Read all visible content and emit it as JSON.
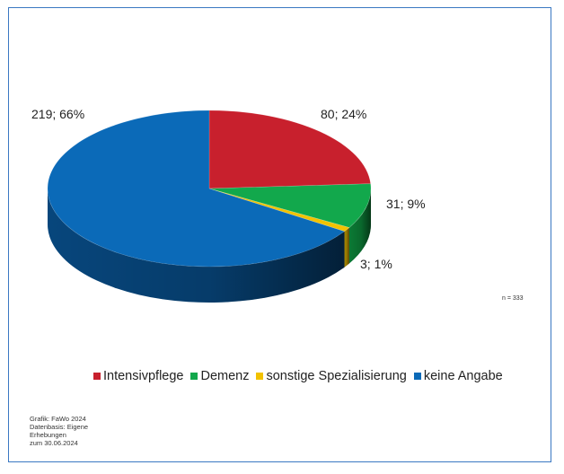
{
  "chart_data": {
    "type": "pie",
    "series": [
      {
        "name": "Intensivpflege",
        "value": 80,
        "label": "80; 24%",
        "color": "#c8202d",
        "side": "#8f1620"
      },
      {
        "name": "Demenz",
        "value": 31,
        "label": "31; 9%",
        "color": "#12a84c",
        "side": "#0b7a34"
      },
      {
        "name": "sonstige Spezialisierung",
        "value": 3,
        "label": "3; 1%",
        "color": "#f2c200",
        "side": "#a88700"
      },
      {
        "name": "keine Angabe",
        "value": 219,
        "label": "219; 66%",
        "color": "#0b6ab8",
        "side": "#07467c"
      }
    ],
    "note": "n = 333",
    "legend_position": "bottom",
    "source_lines": [
      "Grafik: FaWo 2024",
      "Datenbasis: Eigene",
      "Erhebungen",
      "zum 30.06.2024"
    ]
  }
}
